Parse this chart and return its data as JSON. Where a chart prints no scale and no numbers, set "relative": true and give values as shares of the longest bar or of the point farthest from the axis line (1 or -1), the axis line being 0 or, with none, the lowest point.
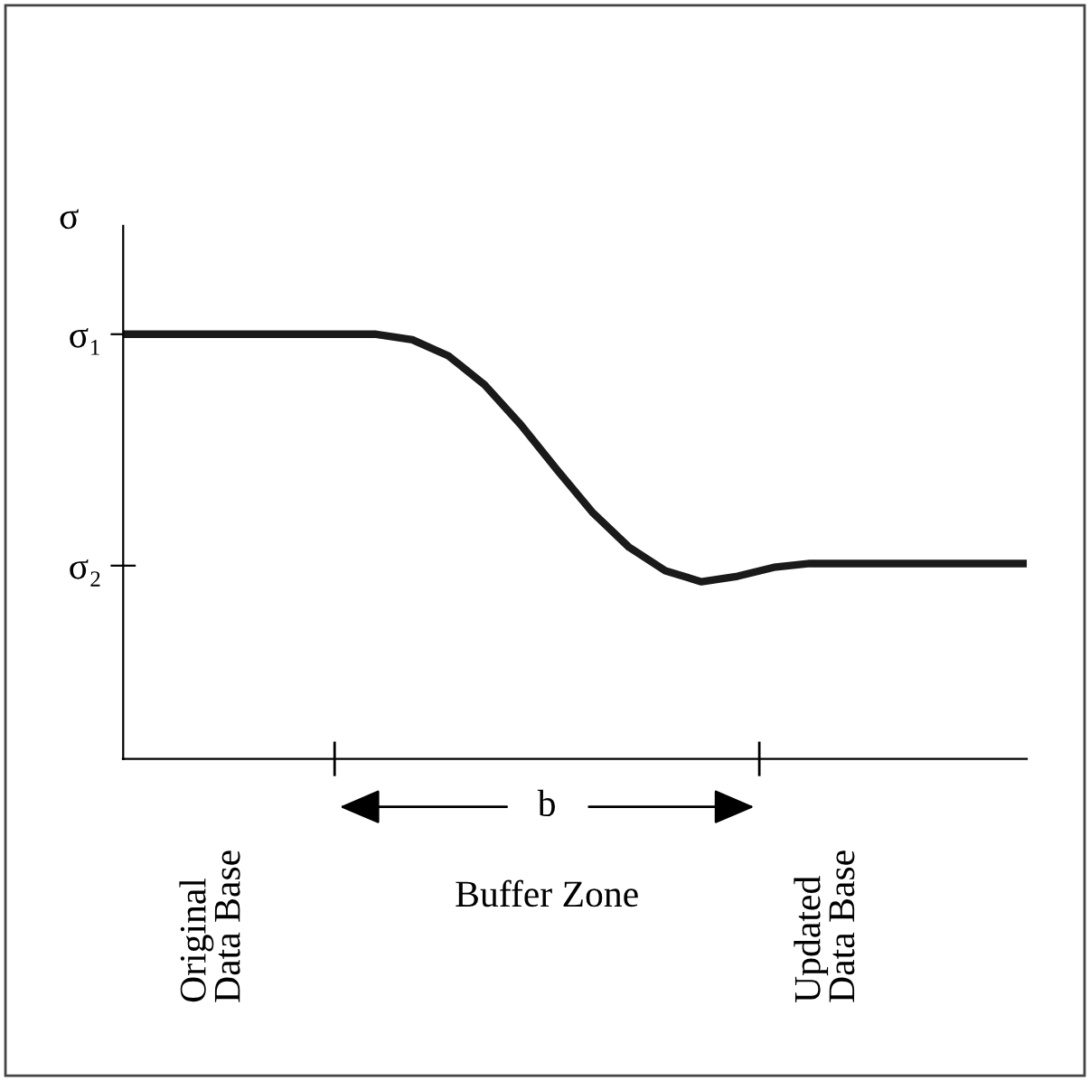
{
  "chart_data": {
    "type": "line",
    "relative": true,
    "ylabel": "σ",
    "categories": [
      null,
      null,
      null,
      null,
      null,
      null,
      null,
      null,
      null,
      null,
      null,
      null,
      null,
      null,
      null,
      null,
      null,
      null,
      null,
      null,
      null,
      null,
      null,
      null,
      null,
      null
    ],
    "series": [
      {
        "color": "#1a1a1a",
        "values": [
          1,
          1,
          1,
          1,
          1,
          1,
          1,
          1,
          0.987,
          0.949,
          0.881,
          0.787,
          0.681,
          0.579,
          0.498,
          0.443,
          0.417,
          0.43,
          0.451,
          0.46,
          0.46,
          0.46,
          0.46,
          0.46,
          0.46,
          0.46
        ]
      }
    ],
    "ref_lines": [
      {
        "axis": "y",
        "value": 1,
        "label": "σ₁"
      },
      {
        "axis": "y",
        "value": 0.455,
        "label": "σ₂"
      }
    ],
    "annotations": [
      "b",
      "Original Data Base",
      "Buffer Zone",
      "Updated Data Base"
    ],
    "marker": "none",
    "line_style": "solid",
    "grid": false,
    "legend": false
  }
}
